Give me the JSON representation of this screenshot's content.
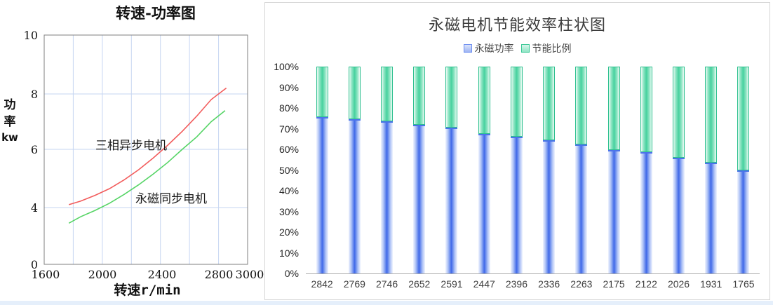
{
  "page": {
    "footer_strip_color": "#e5effb"
  },
  "left_chart": {
    "title": "转速-功率图",
    "y_axis_label_lines": [
      "功",
      "率",
      "kw"
    ],
    "x_axis_label": "转速r/min",
    "y_ticks": [
      "10",
      "8",
      "6",
      "4",
      "0"
    ],
    "x_ticks": [
      "1600",
      "2000",
      "2400",
      "2800",
      "3000"
    ],
    "series_labels": {
      "red": "三相异步电机",
      "green": "永磁同步电机"
    },
    "colors": {
      "red": "#f25c5c",
      "green": "#55d465",
      "grid": "#c6d6f2",
      "axis": "#7f7f7f"
    }
  },
  "right_chart": {
    "title": "永磁电机节能效率柱状图",
    "legend": [
      {
        "label": "永磁功率",
        "color_center": "#3e68e8",
        "color_border": "#4b73ea"
      },
      {
        "label": "节能比例",
        "color_center": "#46d19e",
        "color_border": "#2ec08f"
      }
    ],
    "y_ticks": [
      "100%",
      "90%",
      "80%",
      "70%",
      "60%",
      "50%",
      "40%",
      "30%",
      "20%",
      "10%",
      "0%"
    ]
  },
  "chart_data": [
    {
      "type": "line",
      "title": "转速-功率图",
      "xlabel": "转速r/min",
      "ylabel": "功率kw",
      "xlim": [
        1600,
        3000
      ],
      "y_tick_labels": [
        0,
        4,
        6,
        8,
        10
      ],
      "grid": true,
      "series": [
        {
          "name": "三相异步电机",
          "color": "#f25c5c",
          "x": [
            1770,
            1850,
            1950,
            2050,
            2150,
            2250,
            2350,
            2450,
            2550,
            2650,
            2750,
            2853
          ],
          "y": [
            4.1,
            4.22,
            4.42,
            4.65,
            4.95,
            5.3,
            5.7,
            6.15,
            6.65,
            7.2,
            7.8,
            8.2
          ]
        },
        {
          "name": "永磁同步电机",
          "color": "#55d465",
          "x": [
            1770,
            1850,
            1950,
            2050,
            2150,
            2250,
            2350,
            2450,
            2550,
            2650,
            2750,
            2845
          ],
          "y": [
            2.9,
            3.35,
            3.8,
            4.15,
            4.45,
            4.78,
            5.15,
            5.55,
            6.0,
            6.45,
            7.0,
            7.4
          ]
        }
      ]
    },
    {
      "type": "bar",
      "subtype": "stacked",
      "title": "永磁电机节能效率柱状图",
      "categories": [
        "2842",
        "2769",
        "2746",
        "2652",
        "2591",
        "2447",
        "2396",
        "2336",
        "2263",
        "2175",
        "2122",
        "2026",
        "1931",
        "1765"
      ],
      "series": [
        {
          "name": "永磁功率",
          "values": [
            75.5,
            74.5,
            73.5,
            72,
            70.5,
            67.5,
            66,
            64.5,
            62.5,
            59.5,
            58.5,
            56,
            53.5,
            50
          ]
        },
        {
          "name": "节能比例",
          "values": [
            24.5,
            25.5,
            26.5,
            28,
            29.5,
            32.5,
            34,
            35.5,
            37.5,
            40.5,
            41.5,
            44,
            46.5,
            50
          ]
        }
      ],
      "ylim": [
        0,
        100
      ],
      "ytick_format": "percent",
      "legend_position": "top",
      "grid": false
    }
  ]
}
